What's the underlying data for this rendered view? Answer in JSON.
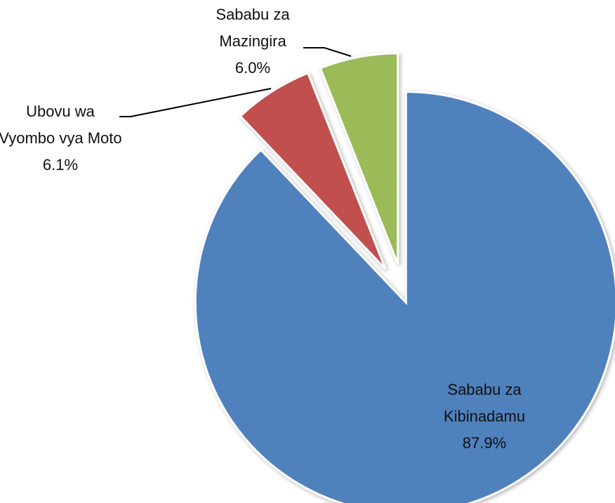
{
  "chart_data": {
    "type": "pie",
    "categories": [
      "Sababu za Kibinadamu",
      "Ubovu wa Vyombo vya Moto",
      "Sababu za Mazingira"
    ],
    "values": [
      87.9,
      6.1,
      6.0
    ],
    "value_labels": [
      "87.9%",
      "6.1%",
      "6.0%"
    ],
    "colors": [
      "#4f81bd",
      "#c0504d",
      "#9bbb59"
    ]
  }
}
